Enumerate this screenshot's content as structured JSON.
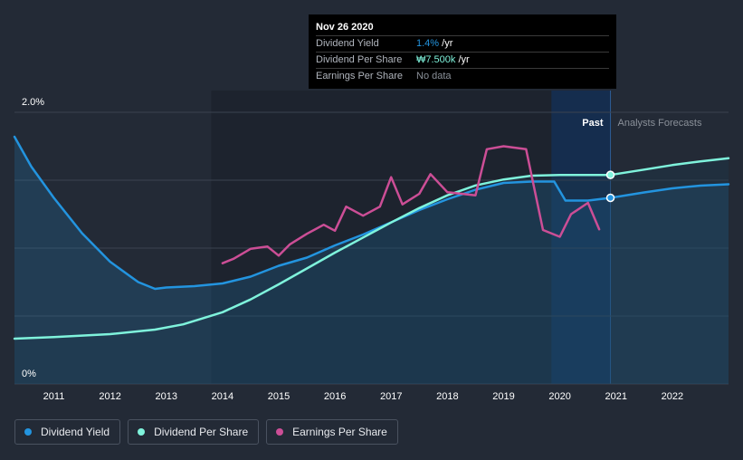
{
  "chart_data": {
    "type": "line",
    "x_ticks": [
      "2011",
      "2012",
      "2013",
      "2014",
      "2015",
      "2016",
      "2017",
      "2018",
      "2019",
      "2020",
      "2021",
      "2022"
    ],
    "y_ticks": [
      "2.0%",
      "0%"
    ],
    "xlim": [
      2010.3,
      2023.0
    ],
    "forecast_start": 2020.9,
    "past_label": "Past",
    "forecast_label": "Analysts Forecasts",
    "series": [
      {
        "name": "Dividend Yield",
        "color": "#2394df",
        "axis": "yield",
        "points": [
          [
            2010.3,
            1.82
          ],
          [
            2010.6,
            1.6
          ],
          [
            2011.0,
            1.37
          ],
          [
            2011.5,
            1.11
          ],
          [
            2012.0,
            0.9
          ],
          [
            2012.5,
            0.75
          ],
          [
            2012.8,
            0.7
          ],
          [
            2013.0,
            0.71
          ],
          [
            2013.5,
            0.72
          ],
          [
            2014.0,
            0.74
          ],
          [
            2014.5,
            0.79
          ],
          [
            2015.0,
            0.87
          ],
          [
            2015.5,
            0.93
          ],
          [
            2016.0,
            1.02
          ],
          [
            2016.5,
            1.1
          ],
          [
            2017.0,
            1.19
          ],
          [
            2017.5,
            1.28
          ],
          [
            2018.0,
            1.36
          ],
          [
            2018.5,
            1.43
          ],
          [
            2019.0,
            1.48
          ],
          [
            2019.5,
            1.49
          ],
          [
            2019.9,
            1.49
          ],
          [
            2020.1,
            1.35
          ],
          [
            2020.5,
            1.35
          ],
          [
            2020.9,
            1.37
          ],
          [
            2021.5,
            1.41
          ],
          [
            2022.0,
            1.44
          ],
          [
            2022.5,
            1.46
          ],
          [
            2023.0,
            1.47
          ]
        ]
      },
      {
        "name": "Dividend Per Share",
        "color": "#7ff3dc",
        "axis": "dps",
        "points": [
          [
            2010.3,
            0.6
          ],
          [
            2011.0,
            0.62
          ],
          [
            2012.0,
            0.66
          ],
          [
            2012.8,
            0.72
          ],
          [
            2013.3,
            0.79
          ],
          [
            2014.0,
            0.95
          ],
          [
            2014.5,
            1.12
          ],
          [
            2015.0,
            1.32
          ],
          [
            2015.5,
            1.53
          ],
          [
            2016.0,
            1.74
          ],
          [
            2016.5,
            1.94
          ],
          [
            2017.0,
            2.14
          ],
          [
            2017.5,
            2.33
          ],
          [
            2018.0,
            2.5
          ],
          [
            2018.5,
            2.63
          ],
          [
            2019.0,
            2.71
          ],
          [
            2019.5,
            2.76
          ],
          [
            2020.0,
            2.77
          ],
          [
            2020.5,
            2.77
          ],
          [
            2020.9,
            2.77
          ],
          [
            2021.5,
            2.84
          ],
          [
            2022.0,
            2.9
          ],
          [
            2022.5,
            2.95
          ],
          [
            2023.0,
            2.99
          ]
        ]
      },
      {
        "name": "Earnings Per Share",
        "color": "#cc4e96",
        "axis": "eps",
        "points": [
          [
            2014.0,
            1.6
          ],
          [
            2014.2,
            1.66
          ],
          [
            2014.5,
            1.79
          ],
          [
            2014.8,
            1.82
          ],
          [
            2015.0,
            1.7
          ],
          [
            2015.2,
            1.85
          ],
          [
            2015.5,
            1.99
          ],
          [
            2015.8,
            2.11
          ],
          [
            2016.0,
            2.03
          ],
          [
            2016.2,
            2.35
          ],
          [
            2016.5,
            2.23
          ],
          [
            2016.8,
            2.35
          ],
          [
            2017.0,
            2.74
          ],
          [
            2017.2,
            2.38
          ],
          [
            2017.5,
            2.52
          ],
          [
            2017.7,
            2.78
          ],
          [
            2018.0,
            2.54
          ],
          [
            2018.5,
            2.5
          ],
          [
            2018.7,
            3.11
          ],
          [
            2019.0,
            3.15
          ],
          [
            2019.4,
            3.11
          ],
          [
            2019.7,
            2.04
          ],
          [
            2020.0,
            1.95
          ],
          [
            2020.2,
            2.25
          ],
          [
            2020.5,
            2.4
          ],
          [
            2020.7,
            2.05
          ]
        ]
      }
    ],
    "markers": [
      {
        "series": "Dividend Yield",
        "x": 2020.9,
        "y": 1.37
      },
      {
        "series": "Dividend Per Share",
        "x": 2020.9,
        "y": 2.77
      }
    ]
  },
  "tooltip": {
    "date": "Nov 26 2020",
    "rows": [
      {
        "label": "Dividend Yield",
        "value": "1.4%",
        "suffix": " /yr",
        "color": "#2394df"
      },
      {
        "label": "Dividend Per Share",
        "value": "₩7.500k",
        "suffix": " /yr",
        "color": "#7ff3dc"
      },
      {
        "label": "Earnings Per Share",
        "value": "No data",
        "suffix": "",
        "color": "#8a9099"
      }
    ]
  },
  "legend": [
    {
      "label": "Dividend Yield",
      "color": "#2394df"
    },
    {
      "label": "Dividend Per Share",
      "color": "#7ff3dc"
    },
    {
      "label": "Earnings Per Share",
      "color": "#cc4e96"
    }
  ]
}
